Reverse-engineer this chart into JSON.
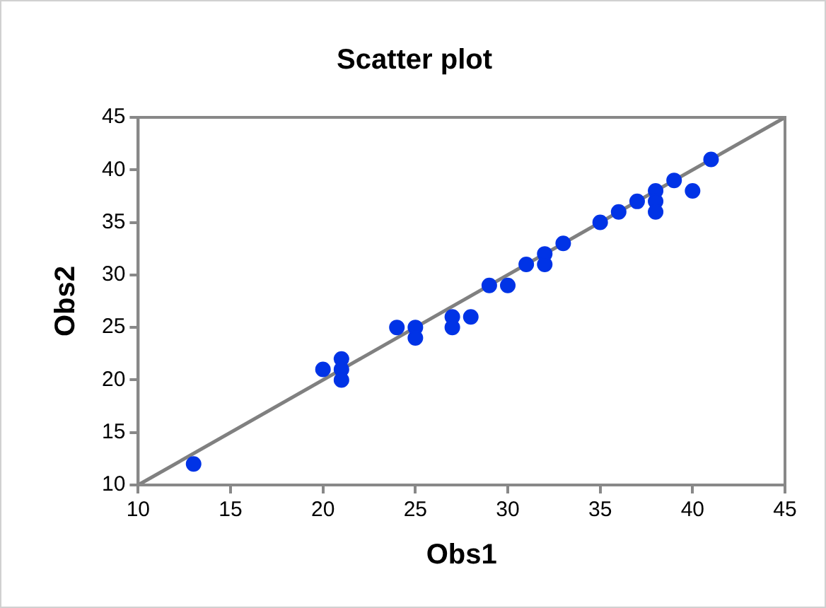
{
  "chart_data": {
    "type": "scatter",
    "title": "Scatter plot",
    "xlabel": "Obs1",
    "ylabel": "Obs2",
    "xlim": [
      10,
      45
    ],
    "xticks": [
      10,
      15,
      20,
      25,
      30,
      35,
      40,
      45
    ],
    "ylim": [
      10,
      45
    ],
    "yticks": [
      10,
      15,
      20,
      25,
      30,
      35,
      40,
      45
    ],
    "grid": false,
    "legend": false,
    "marker": "circle",
    "series": [
      {
        "color": "#0033e6",
        "x": [
          13,
          20,
          21,
          21,
          21,
          24,
          25,
          25,
          27,
          27,
          28,
          29,
          30,
          31,
          32,
          32,
          33,
          35,
          36,
          37,
          38,
          38,
          38,
          39,
          40,
          41
        ],
        "values": [
          12,
          21,
          22,
          21,
          20,
          25,
          25,
          24,
          26,
          25,
          26,
          29,
          29,
          31,
          32,
          31,
          33,
          35,
          36,
          37,
          38,
          37,
          36,
          39,
          38,
          41
        ]
      },
      {
        "type": "line",
        "color": "#808080",
        "x": [
          10,
          45
        ],
        "values": [
          10,
          45
        ],
        "marker": "none",
        "line_style": "solid"
      }
    ]
  }
}
